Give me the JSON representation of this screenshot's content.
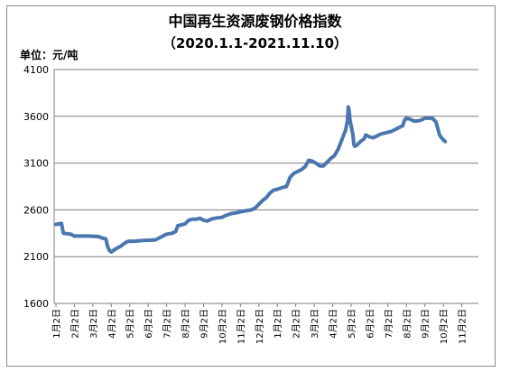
{
  "chart_data": {
    "type": "line",
    "title": "中国再生资源废钢价格指数",
    "subtitle": "（2020.1.1-2021.11.10）",
    "unit_label": "单位：元/吨",
    "xlabel": "",
    "ylabel": "",
    "ylim": [
      1600,
      4100
    ],
    "yticks": [
      1600,
      2100,
      2600,
      3100,
      3600,
      4100
    ],
    "grid": true,
    "legend": "none",
    "line_color": "#4a76b0",
    "categories": [
      "1月2日",
      "2月2日",
      "3月2日",
      "4月2日",
      "5月2日",
      "6月2日",
      "7月2日",
      "8月2日",
      "9月2日",
      "10月2日",
      "11月2日",
      "12月2日",
      "1月2日",
      "2月2日",
      "3月2日",
      "4月2日",
      "5月2日",
      "6月2日",
      "7月2日",
      "8月2日",
      "9月2日",
      "10月2日",
      "11月2日"
    ],
    "series": [
      {
        "values": [
          [
            0,
            2445
          ],
          [
            0.15,
            2450
          ],
          [
            0.3,
            2455
          ],
          [
            0.4,
            2350
          ],
          [
            0.6,
            2345
          ],
          [
            0.8,
            2340
          ],
          [
            0.9,
            2330
          ],
          [
            1.0,
            2320
          ],
          [
            1.2,
            2320
          ],
          [
            1.5,
            2320
          ],
          [
            1.8,
            2320
          ],
          [
            2.0,
            2318
          ],
          [
            2.3,
            2315
          ],
          [
            2.5,
            2300
          ],
          [
            2.7,
            2290
          ],
          [
            2.8,
            2210
          ],
          [
            2.9,
            2165
          ],
          [
            3.0,
            2150
          ],
          [
            3.1,
            2165
          ],
          [
            3.3,
            2190
          ],
          [
            3.5,
            2210
          ],
          [
            3.7,
            2240
          ],
          [
            3.85,
            2260
          ],
          [
            4.0,
            2265
          ],
          [
            4.3,
            2265
          ],
          [
            4.5,
            2270
          ],
          [
            4.8,
            2275
          ],
          [
            5.0,
            2275
          ],
          [
            5.4,
            2280
          ],
          [
            5.6,
            2300
          ],
          [
            5.8,
            2320
          ],
          [
            6.0,
            2340
          ],
          [
            6.3,
            2350
          ],
          [
            6.5,
            2370
          ],
          [
            6.6,
            2430
          ],
          [
            6.8,
            2440
          ],
          [
            7.0,
            2450
          ],
          [
            7.2,
            2490
          ],
          [
            7.4,
            2500
          ],
          [
            7.6,
            2500
          ],
          [
            7.8,
            2510
          ],
          [
            8.0,
            2490
          ],
          [
            8.2,
            2480
          ],
          [
            8.4,
            2500
          ],
          [
            8.6,
            2510
          ],
          [
            9.0,
            2520
          ],
          [
            9.2,
            2540
          ],
          [
            9.5,
            2560
          ],
          [
            9.8,
            2570
          ],
          [
            10.0,
            2580
          ],
          [
            10.3,
            2590
          ],
          [
            10.6,
            2600
          ],
          [
            10.8,
            2620
          ],
          [
            11.0,
            2660
          ],
          [
            11.2,
            2700
          ],
          [
            11.4,
            2730
          ],
          [
            11.6,
            2780
          ],
          [
            11.8,
            2810
          ],
          [
            12.0,
            2820
          ],
          [
            12.3,
            2840
          ],
          [
            12.5,
            2850
          ],
          [
            12.7,
            2950
          ],
          [
            12.9,
            2990
          ],
          [
            13.1,
            3010
          ],
          [
            13.3,
            3030
          ],
          [
            13.5,
            3060
          ],
          [
            13.7,
            3130
          ],
          [
            13.9,
            3120
          ],
          [
            14.1,
            3100
          ],
          [
            14.3,
            3070
          ],
          [
            14.5,
            3070
          ],
          [
            14.7,
            3110
          ],
          [
            14.9,
            3150
          ],
          [
            15.1,
            3180
          ],
          [
            15.3,
            3250
          ],
          [
            15.5,
            3350
          ],
          [
            15.7,
            3450
          ],
          [
            15.8,
            3550
          ],
          [
            15.85,
            3700
          ],
          [
            15.9,
            3650
          ],
          [
            15.95,
            3550
          ],
          [
            16.0,
            3500
          ],
          [
            16.1,
            3400
          ],
          [
            16.15,
            3300
          ],
          [
            16.2,
            3280
          ],
          [
            16.3,
            3290
          ],
          [
            16.5,
            3330
          ],
          [
            16.7,
            3360
          ],
          [
            16.8,
            3400
          ],
          [
            17.0,
            3380
          ],
          [
            17.2,
            3370
          ],
          [
            17.4,
            3390
          ],
          [
            17.6,
            3410
          ],
          [
            17.8,
            3420
          ],
          [
            18.0,
            3430
          ],
          [
            18.2,
            3440
          ],
          [
            18.4,
            3460
          ],
          [
            18.6,
            3480
          ],
          [
            18.8,
            3500
          ],
          [
            18.9,
            3560
          ],
          [
            19.0,
            3580
          ],
          [
            19.2,
            3570
          ],
          [
            19.4,
            3550
          ],
          [
            19.6,
            3550
          ],
          [
            19.8,
            3560
          ],
          [
            20.0,
            3580
          ],
          [
            20.2,
            3580
          ],
          [
            20.4,
            3580
          ],
          [
            20.6,
            3540
          ],
          [
            20.7,
            3470
          ],
          [
            20.8,
            3400
          ],
          [
            20.9,
            3370
          ],
          [
            21.0,
            3350
          ],
          [
            21.1,
            3330
          ]
        ]
      }
    ]
  }
}
